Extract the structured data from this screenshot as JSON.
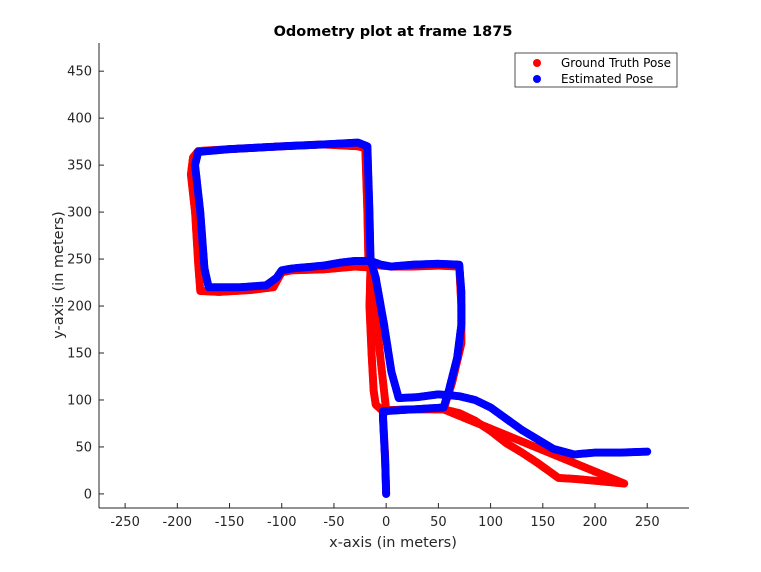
{
  "chart_data": {
    "type": "scatter",
    "title": "Odometry plot at frame 1875",
    "xlabel": "x-axis (in meters)",
    "ylabel": "y-axis (in meters)",
    "xlim": [
      -275,
      290
    ],
    "ylim": [
      -15,
      480
    ],
    "xticks": [
      -250,
      -200,
      -150,
      -100,
      -50,
      0,
      50,
      100,
      150,
      200,
      250
    ],
    "yticks": [
      0,
      50,
      100,
      150,
      200,
      250,
      300,
      350,
      400,
      450
    ],
    "grid": false,
    "legend_position": "top-right",
    "series": [
      {
        "name": "Ground Truth Pose",
        "color": "#ff0000",
        "points": [
          [
            0,
            0
          ],
          [
            -1,
            40
          ],
          [
            -3,
            82
          ],
          [
            -2,
            89
          ],
          [
            0,
            89
          ],
          [
            20,
            90
          ],
          [
            40,
            90
          ],
          [
            55,
            90
          ],
          [
            70,
            86
          ],
          [
            85,
            78
          ],
          [
            100,
            67
          ],
          [
            115,
            54
          ],
          [
            130,
            44
          ],
          [
            145,
            33
          ],
          [
            160,
            21
          ],
          [
            165,
            17
          ],
          [
            180,
            16
          ],
          [
            200,
            14
          ],
          [
            228,
            11
          ],
          [
            55,
            90
          ],
          [
            63,
            118
          ],
          [
            72,
            160
          ],
          [
            72,
            200
          ],
          [
            70,
            242
          ],
          [
            50,
            243
          ],
          [
            25,
            242
          ],
          [
            5,
            242
          ],
          [
            -5,
            243
          ],
          [
            -10,
            244
          ],
          [
            -15,
            241
          ],
          [
            -16,
            200
          ],
          [
            -14,
            150
          ],
          [
            -12,
            110
          ],
          [
            -10,
            95
          ],
          [
            -5,
            90
          ],
          [
            0,
            89
          ],
          [
            -15,
            241
          ],
          [
            -30,
            242
          ],
          [
            -60,
            239
          ],
          [
            -90,
            238
          ],
          [
            -100,
            236
          ],
          [
            -104,
            228
          ],
          [
            -108,
            220
          ],
          [
            -130,
            217
          ],
          [
            -160,
            215
          ],
          [
            -178,
            216
          ],
          [
            -180,
            245
          ],
          [
            -183,
            300
          ],
          [
            -187,
            340
          ],
          [
            -185,
            358
          ],
          [
            -180,
            365
          ],
          [
            -150,
            367
          ],
          [
            -100,
            370
          ],
          [
            -60,
            372
          ],
          [
            -27,
            370
          ],
          [
            -20,
            368
          ],
          [
            -18,
            300
          ],
          [
            -17,
            248
          ],
          [
            -15,
            241
          ]
        ]
      },
      {
        "name": "Estimated Pose",
        "color": "#0000ff",
        "points": [
          [
            0,
            0
          ],
          [
            -1,
            35
          ],
          [
            -3,
            80
          ],
          [
            -3,
            88
          ],
          [
            55,
            92
          ],
          [
            60,
            110
          ],
          [
            68,
            145
          ],
          [
            72,
            180
          ],
          [
            72,
            215
          ],
          [
            70,
            244
          ],
          [
            50,
            245
          ],
          [
            25,
            244
          ],
          [
            5,
            242
          ],
          [
            -5,
            244
          ],
          [
            -10,
            246
          ],
          [
            -15,
            248
          ],
          [
            -30,
            248
          ],
          [
            -45,
            246
          ],
          [
            -60,
            243
          ],
          [
            -90,
            240
          ],
          [
            -100,
            238
          ],
          [
            -105,
            230
          ],
          [
            -115,
            222
          ],
          [
            -140,
            220
          ],
          [
            -170,
            220
          ],
          [
            -174,
            240
          ],
          [
            -178,
            300
          ],
          [
            -183,
            350
          ],
          [
            -180,
            364
          ],
          [
            -150,
            367
          ],
          [
            -100,
            370
          ],
          [
            -60,
            372
          ],
          [
            -27,
            374
          ],
          [
            -18,
            370
          ],
          [
            -16,
            300
          ],
          [
            -15,
            250
          ],
          [
            -10,
            230
          ],
          [
            -2,
            180
          ],
          [
            5,
            130
          ],
          [
            12,
            102
          ],
          [
            30,
            103
          ],
          [
            50,
            106
          ],
          [
            70,
            104
          ],
          [
            85,
            100
          ],
          [
            100,
            92
          ],
          [
            115,
            80
          ],
          [
            130,
            68
          ],
          [
            145,
            58
          ],
          [
            160,
            48
          ],
          [
            180,
            42
          ],
          [
            200,
            44
          ],
          [
            225,
            44
          ],
          [
            250,
            45
          ]
        ]
      }
    ]
  }
}
